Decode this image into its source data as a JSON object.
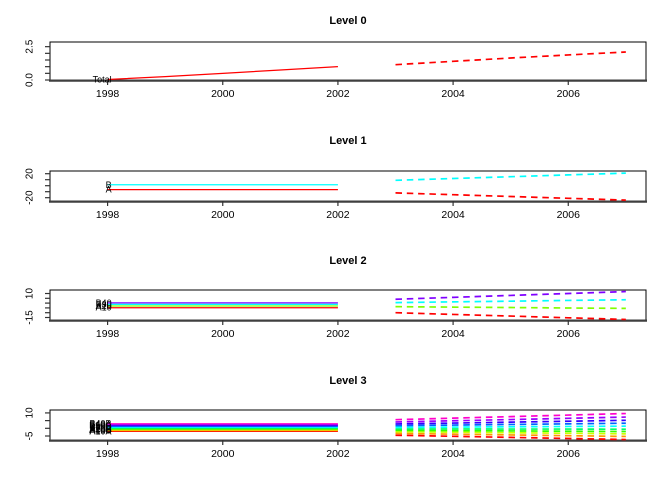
{
  "figure": {
    "background": "#ffffff",
    "axis_color": "#000000",
    "bottom_axis_color": "#3f3f3f",
    "label_color": "#000000"
  },
  "chart_data": [
    {
      "type": "line",
      "title": "Level 0",
      "xlim": [
        1997.0,
        2007.35
      ],
      "ylim": [
        0,
        2.85
      ],
      "x_ticks": [
        1998,
        2000,
        2002,
        2004,
        2006
      ],
      "y_ticks": [
        0,
        0.5,
        1.0,
        1.5,
        2.0,
        2.5
      ],
      "y_tick_labels": [
        {
          "v": 0,
          "label": "0.0"
        },
        {
          "v": 2.5,
          "label": "2.5"
        }
      ],
      "series": [
        {
          "label": "Total",
          "color": "#FF0000",
          "history": {
            "x": [
              1998,
              1999,
              2000,
              2001,
              2002
            ],
            "y": [
              0.04,
              0.25,
              0.5,
              0.75,
              1.0
            ]
          },
          "forecast": {
            "x": [
              2003,
              2004,
              2005,
              2006,
              2007
            ],
            "y": [
              1.15,
              1.4,
              1.65,
              1.88,
              2.1
            ]
          }
        }
      ]
    },
    {
      "type": "line",
      "title": "Level 1",
      "xlim": [
        1997.0,
        2007.35
      ],
      "ylim": [
        -25.5,
        24.5
      ],
      "x_ticks": [
        1998,
        2000,
        2002,
        2004,
        2006
      ],
      "y_ticks": [
        -20,
        -10,
        0,
        10,
        20
      ],
      "y_tick_labels": [
        {
          "v": -20,
          "label": "-20"
        },
        {
          "v": 20,
          "label": "20"
        }
      ],
      "series": [
        {
          "label": "A",
          "color": "#FF0000",
          "history": {
            "x": [
              1998,
              1999,
              2000,
              2001,
              2002
            ],
            "y": [
              -6.5,
              -6.5,
              -6.5,
              -6.5,
              -6.5
            ]
          },
          "forecast": {
            "x": [
              2003,
              2004,
              2005,
              2006,
              2007
            ],
            "y": [
              -12,
              -15,
              -18,
              -21,
              -24
            ]
          }
        },
        {
          "label": "B",
          "color": "#00FFFF",
          "history": {
            "x": [
              1998,
              1999,
              2000,
              2001,
              2002
            ],
            "y": [
              1.5,
              1.5,
              1.5,
              1.5,
              1.5
            ]
          },
          "forecast": {
            "x": [
              2003,
              2004,
              2005,
              2006,
              2007
            ],
            "y": [
              9,
              12,
              15,
              18,
              21
            ]
          }
        }
      ]
    },
    {
      "type": "line",
      "title": "Level 2",
      "xlim": [
        1997.0,
        2007.35
      ],
      "ylim": [
        -17.6,
        13.65
      ],
      "x_ticks": [
        1998,
        2000,
        2002,
        2004,
        2006
      ],
      "y_ticks": [
        -15,
        -10,
        -5,
        0,
        5,
        10
      ],
      "y_tick_labels": [
        {
          "v": -15,
          "label": "-15"
        },
        {
          "v": 10,
          "label": "10"
        }
      ],
      "series": [
        {
          "label": "A10",
          "color": "#FF0000",
          "history": {
            "x": [
              1998,
              1999,
              2000,
              2001,
              2002
            ],
            "y": [
              -4.8,
              -4.8,
              -4.8,
              -4.8,
              -4.8
            ]
          },
          "forecast": {
            "x": [
              2003,
              2004,
              2005,
              2006,
              2007
            ],
            "y": [
              -10,
              -11.8,
              -13.5,
              -15.3,
              -17
            ]
          }
        },
        {
          "label": "A20",
          "color": "#80FF00",
          "history": {
            "x": [
              1998,
              1999,
              2000,
              2001,
              2002
            ],
            "y": [
              -3.0,
              -3.0,
              -3.0,
              -3.0,
              -3.0
            ]
          },
          "forecast": {
            "x": [
              2003,
              2004,
              2005,
              2006,
              2007
            ],
            "y": [
              -3.7,
              -4.2,
              -4.6,
              -5.1,
              -5.5
            ]
          }
        },
        {
          "label": "B30",
          "color": "#00FFFF",
          "history": {
            "x": [
              1998,
              1999,
              2000,
              2001,
              2002
            ],
            "y": [
              -1.3,
              -1.3,
              -1.3,
              -1.3,
              -1.3
            ]
          },
          "forecast": {
            "x": [
              2003,
              2004,
              2005,
              2006,
              2007
            ],
            "y": [
              0.5,
              1.3,
              2.0,
              2.8,
              3.5
            ]
          }
        },
        {
          "label": "B40",
          "color": "#8000FF",
          "history": {
            "x": [
              1998,
              1999,
              2000,
              2001,
              2002
            ],
            "y": [
              0.3,
              0.3,
              0.3,
              0.3,
              0.3
            ]
          },
          "forecast": {
            "x": [
              2003,
              2004,
              2005,
              2006,
              2007
            ],
            "y": [
              4,
              6,
              8,
              10,
              12
            ]
          }
        }
      ]
    },
    {
      "type": "line",
      "title": "Level 3",
      "xlim": [
        1997.0,
        2007.35
      ],
      "ylim": [
        -7.6,
        11.9
      ],
      "x_ticks": [
        1998,
        2000,
        2002,
        2004,
        2006
      ],
      "y_ticks": [
        -5,
        0,
        5,
        10
      ],
      "y_tick_labels": [
        {
          "v": -5,
          "label": "-5"
        },
        {
          "v": 10,
          "label": "10"
        }
      ],
      "series": [
        {
          "label": "A10A",
          "color": "#FF0000",
          "history": {
            "x": [
              1998,
              1999,
              2000,
              2001,
              2002
            ],
            "y": [
              -2.0,
              -2.0,
              -2.0,
              -2.0,
              -2.0
            ]
          },
          "forecast": {
            "x": [
              2003,
              2004,
              2005,
              2006,
              2007
            ],
            "y": [
              -4.5,
              -5.2,
              -5.9,
              -6.6,
              -7.3
            ]
          }
        },
        {
          "label": "A10B",
          "color": "#FF9900",
          "history": {
            "x": [
              1998,
              1999,
              2000,
              2001,
              2002
            ],
            "y": [
              -1.5,
              -1.5,
              -1.5,
              -1.5,
              -1.5
            ]
          },
          "forecast": {
            "x": [
              2003,
              2004,
              2005,
              2006,
              2007
            ],
            "y": [
              -3.3,
              -3.8,
              -4.3,
              -4.8,
              -5.3
            ]
          }
        },
        {
          "label": "A10C",
          "color": "#CCFF00",
          "history": {
            "x": [
              1998,
              1999,
              2000,
              2001,
              2002
            ],
            "y": [
              -1.0,
              -1.0,
              -1.0,
              -1.0,
              -1.0
            ]
          },
          "forecast": {
            "x": [
              2003,
              2004,
              2005,
              2006,
              2007
            ],
            "y": [
              -2.2,
              -2.5,
              -2.9,
              -3.2,
              -3.6
            ]
          }
        },
        {
          "label": "A20A",
          "color": "#33FF00",
          "history": {
            "x": [
              1998,
              1999,
              2000,
              2001,
              2002
            ],
            "y": [
              -0.5,
              -0.5,
              -0.5,
              -0.5,
              -0.5
            ]
          },
          "forecast": {
            "x": [
              2003,
              2004,
              2005,
              2006,
              2007
            ],
            "y": [
              -1.3,
              -1.5,
              -1.7,
              -1.9,
              -2.1
            ]
          }
        },
        {
          "label": "A20B",
          "color": "#00FF66",
          "history": {
            "x": [
              1998,
              1999,
              2000,
              2001,
              2002
            ],
            "y": [
              0.0,
              0.0,
              0.0,
              0.0,
              0.0
            ]
          },
          "forecast": {
            "x": [
              2003,
              2004,
              2005,
              2006,
              2007
            ],
            "y": [
              -0.4,
              -0.4,
              -0.5,
              -0.5,
              -0.6
            ]
          }
        },
        {
          "label": "B30A",
          "color": "#00FFFF",
          "history": {
            "x": [
              1998,
              1999,
              2000,
              2001,
              2002
            ],
            "y": [
              0.6,
              0.6,
              0.6,
              0.6,
              0.6
            ]
          },
          "forecast": {
            "x": [
              2003,
              2004,
              2005,
              2006,
              2007
            ],
            "y": [
              0.6,
              0.8,
              1.0,
              1.2,
              1.4
            ]
          }
        },
        {
          "label": "B30B",
          "color": "#0066FF",
          "history": {
            "x": [
              1998,
              1999,
              2000,
              2001,
              2002
            ],
            "y": [
              1.2,
              1.2,
              1.2,
              1.2,
              1.2
            ]
          },
          "forecast": {
            "x": [
              2003,
              2004,
              2005,
              2006,
              2007
            ],
            "y": [
              1.7,
              2.1,
              2.5,
              2.9,
              3.3
            ]
          }
        },
        {
          "label": "B30C",
          "color": "#3300FF",
          "history": {
            "x": [
              1998,
              1999,
              2000,
              2001,
              2002
            ],
            "y": [
              1.8,
              1.8,
              1.8,
              1.8,
              1.8
            ]
          },
          "forecast": {
            "x": [
              2003,
              2004,
              2005,
              2006,
              2007
            ],
            "y": [
              2.8,
              3.4,
              4.0,
              4.6,
              5.2
            ]
          }
        },
        {
          "label": "B40A",
          "color": "#9900FF",
          "history": {
            "x": [
              1998,
              1999,
              2000,
              2001,
              2002
            ],
            "y": [
              2.4,
              2.4,
              2.4,
              2.4,
              2.4
            ]
          },
          "forecast": {
            "x": [
              2003,
              2004,
              2005,
              2006,
              2007
            ],
            "y": [
              4.1,
              4.9,
              5.7,
              6.5,
              7.3
            ]
          }
        },
        {
          "label": "B40B",
          "color": "#FF00CC",
          "history": {
            "x": [
              1998,
              1999,
              2000,
              2001,
              2002
            ],
            "y": [
              3.0,
              3.0,
              3.0,
              3.0,
              3.0
            ]
          },
          "forecast": {
            "x": [
              2003,
              2004,
              2005,
              2006,
              2007
            ],
            "y": [
              5.6,
              6.6,
              7.6,
              8.6,
              9.6
            ]
          }
        }
      ]
    }
  ]
}
